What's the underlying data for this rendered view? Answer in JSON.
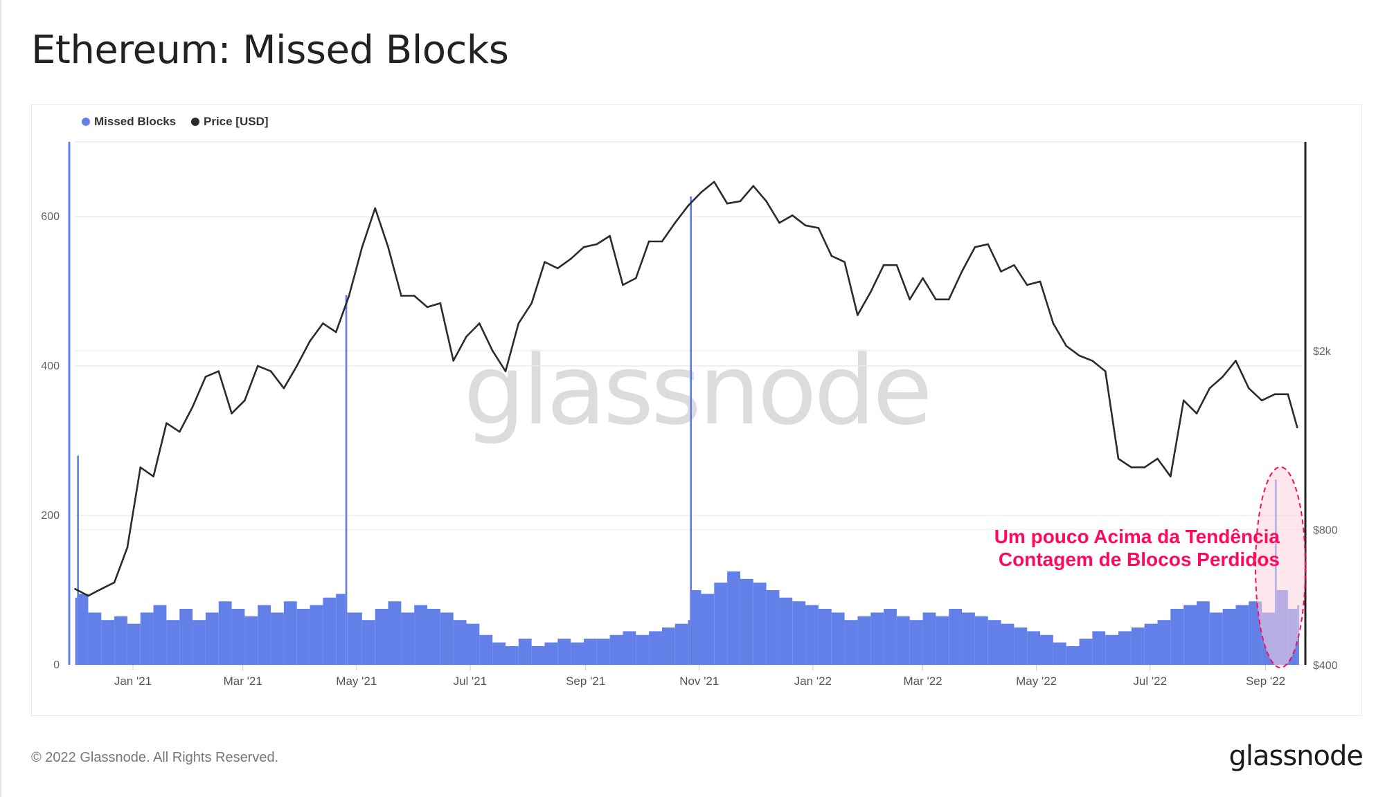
{
  "title": "Ethereum: Missed Blocks",
  "footer": {
    "copyright": "© 2022 Glassnode. All Rights Reserved.",
    "logo": "glassnode"
  },
  "watermark": "glassnode",
  "annotation": {
    "line1": "Um pouco Acima da Tendência",
    "line2": "Contagem de Blocos Perdidos",
    "color": "#ff0a5a",
    "highlight_fill": "#fbd3df"
  },
  "chart_data": {
    "type": "bar+line",
    "legend": [
      {
        "name": "Missed Blocks",
        "color": "#6380e8"
      },
      {
        "name": "Price [USD]",
        "color": "#2b2b2b"
      }
    ],
    "legend_position": "top-left",
    "x_ticks": [
      "Jan '21",
      "Mar '21",
      "May '21",
      "Jul '21",
      "Sep '21",
      "Nov '21",
      "Jan '22",
      "Mar '22",
      "May '22",
      "Jul '22",
      "Sep '22"
    ],
    "x_tick_dates": [
      "2021-01-01",
      "2021-03-01",
      "2021-05-01",
      "2021-07-01",
      "2021-09-01",
      "2021-11-01",
      "2022-01-01",
      "2022-03-01",
      "2022-05-01",
      "2022-07-01",
      "2022-09-01"
    ],
    "x_range": [
      "2020-12-01",
      "2022-09-18"
    ],
    "y_left": {
      "ticks": [
        0,
        200,
        400,
        600
      ],
      "range": [
        0,
        700
      ],
      "scale": "linear"
    },
    "y_right": {
      "ticks": [
        "$400",
        "$800",
        "$2k"
      ],
      "tick_values": [
        400,
        800,
        2000
      ],
      "range": [
        400,
        5830
      ],
      "scale": "log"
    },
    "grid": true,
    "series": [
      {
        "name": "Missed Blocks",
        "type": "bar",
        "axis": "left",
        "x": [
          "2020-12-01",
          "2020-12-02",
          "2020-12-03",
          "2020-12-08",
          "2020-12-15",
          "2020-12-22",
          "2020-12-29",
          "2021-01-05",
          "2021-01-12",
          "2021-01-19",
          "2021-01-26",
          "2021-02-02",
          "2021-02-09",
          "2021-02-16",
          "2021-02-23",
          "2021-03-02",
          "2021-03-09",
          "2021-03-16",
          "2021-03-23",
          "2021-03-30",
          "2021-04-06",
          "2021-04-13",
          "2021-04-20",
          "2021-04-25",
          "2021-04-26",
          "2021-05-04",
          "2021-05-11",
          "2021-05-18",
          "2021-05-25",
          "2021-06-01",
          "2021-06-08",
          "2021-06-15",
          "2021-06-22",
          "2021-06-29",
          "2021-07-06",
          "2021-07-13",
          "2021-07-20",
          "2021-07-27",
          "2021-08-03",
          "2021-08-10",
          "2021-08-17",
          "2021-08-24",
          "2021-08-31",
          "2021-09-07",
          "2021-09-14",
          "2021-09-21",
          "2021-09-28",
          "2021-10-05",
          "2021-10-12",
          "2021-10-19",
          "2021-10-26",
          "2021-10-27",
          "2021-10-28",
          "2021-11-02",
          "2021-11-09",
          "2021-11-16",
          "2021-11-23",
          "2021-11-30",
          "2021-12-07",
          "2021-12-14",
          "2021-12-21",
          "2021-12-28",
          "2022-01-04",
          "2022-01-11",
          "2022-01-18",
          "2022-01-25",
          "2022-02-01",
          "2022-02-08",
          "2022-02-15",
          "2022-02-22",
          "2022-03-01",
          "2022-03-08",
          "2022-03-15",
          "2022-03-22",
          "2022-03-29",
          "2022-04-05",
          "2022-04-12",
          "2022-04-19",
          "2022-04-26",
          "2022-05-03",
          "2022-05-10",
          "2022-05-17",
          "2022-05-24",
          "2022-05-31",
          "2022-06-07",
          "2022-06-14",
          "2022-06-21",
          "2022-06-28",
          "2022-07-05",
          "2022-07-12",
          "2022-07-19",
          "2022-07-26",
          "2022-08-02",
          "2022-08-09",
          "2022-08-16",
          "2022-08-23",
          "2022-08-30",
          "2022-09-06",
          "2022-09-07",
          "2022-09-13",
          "2022-09-18"
        ],
        "values": [
          90,
          280,
          95,
          70,
          60,
          65,
          55,
          70,
          80,
          60,
          75,
          60,
          70,
          85,
          75,
          65,
          80,
          70,
          85,
          75,
          80,
          90,
          95,
          495,
          70,
          60,
          75,
          85,
          70,
          80,
          75,
          70,
          60,
          55,
          40,
          30,
          25,
          35,
          25,
          30,
          35,
          30,
          35,
          35,
          40,
          45,
          40,
          45,
          50,
          55,
          60,
          627,
          100,
          95,
          110,
          125,
          115,
          110,
          100,
          90,
          85,
          80,
          75,
          70,
          60,
          65,
          70,
          75,
          65,
          60,
          70,
          65,
          75,
          70,
          65,
          60,
          55,
          50,
          45,
          40,
          30,
          25,
          35,
          45,
          40,
          45,
          50,
          55,
          60,
          75,
          80,
          85,
          70,
          75,
          80,
          85,
          70,
          248,
          100,
          75,
          80
        ]
      },
      {
        "name": "Price [USD]",
        "type": "line",
        "axis": "right",
        "x": [
          "2020-12-01",
          "2020-12-08",
          "2020-12-15",
          "2020-12-22",
          "2020-12-29",
          "2021-01-05",
          "2021-01-12",
          "2021-01-19",
          "2021-01-26",
          "2021-02-02",
          "2021-02-09",
          "2021-02-16",
          "2021-02-23",
          "2021-03-02",
          "2021-03-09",
          "2021-03-16",
          "2021-03-23",
          "2021-03-30",
          "2021-04-06",
          "2021-04-13",
          "2021-04-20",
          "2021-04-27",
          "2021-05-04",
          "2021-05-11",
          "2021-05-18",
          "2021-05-25",
          "2021-06-01",
          "2021-06-08",
          "2021-06-15",
          "2021-06-22",
          "2021-06-29",
          "2021-07-06",
          "2021-07-13",
          "2021-07-20",
          "2021-07-27",
          "2021-08-03",
          "2021-08-10",
          "2021-08-17",
          "2021-08-24",
          "2021-08-31",
          "2021-09-07",
          "2021-09-14",
          "2021-09-21",
          "2021-09-28",
          "2021-10-05",
          "2021-10-12",
          "2021-10-19",
          "2021-10-26",
          "2021-11-02",
          "2021-11-09",
          "2021-11-16",
          "2021-11-23",
          "2021-11-30",
          "2021-12-07",
          "2021-12-14",
          "2021-12-21",
          "2021-12-28",
          "2022-01-04",
          "2022-01-11",
          "2022-01-18",
          "2022-01-25",
          "2022-02-01",
          "2022-02-08",
          "2022-02-15",
          "2022-02-22",
          "2022-03-01",
          "2022-03-08",
          "2022-03-15",
          "2022-03-22",
          "2022-03-29",
          "2022-04-05",
          "2022-04-12",
          "2022-04-19",
          "2022-04-26",
          "2022-05-03",
          "2022-05-10",
          "2022-05-17",
          "2022-05-24",
          "2022-05-31",
          "2022-06-07",
          "2022-06-14",
          "2022-06-21",
          "2022-06-28",
          "2022-07-05",
          "2022-07-12",
          "2022-07-19",
          "2022-07-26",
          "2022-08-02",
          "2022-08-09",
          "2022-08-16",
          "2022-08-23",
          "2022-08-30",
          "2022-09-06",
          "2022-09-13",
          "2022-09-18"
        ],
        "values": [
          590,
          570,
          590,
          610,
          730,
          1100,
          1050,
          1380,
          1320,
          1500,
          1750,
          1800,
          1450,
          1550,
          1850,
          1800,
          1650,
          1850,
          2100,
          2300,
          2200,
          2650,
          3400,
          4150,
          3400,
          2650,
          2650,
          2500,
          2550,
          1900,
          2150,
          2300,
          2000,
          1800,
          2300,
          2550,
          3150,
          3050,
          3200,
          3400,
          3450,
          3600,
          2800,
          2900,
          3500,
          3500,
          3850,
          4200,
          4500,
          4750,
          4250,
          4300,
          4650,
          4300,
          3850,
          4000,
          3800,
          3750,
          3250,
          3150,
          2400,
          2700,
          3100,
          3100,
          2600,
          2900,
          2600,
          2600,
          3000,
          3400,
          3450,
          3000,
          3100,
          2800,
          2850,
          2300,
          2050,
          1950,
          1900,
          1800,
          1150,
          1100,
          1100,
          1150,
          1050,
          1550,
          1450,
          1650,
          1750,
          1900,
          1650,
          1550,
          1600,
          1600,
          1350
        ]
      }
    ]
  }
}
